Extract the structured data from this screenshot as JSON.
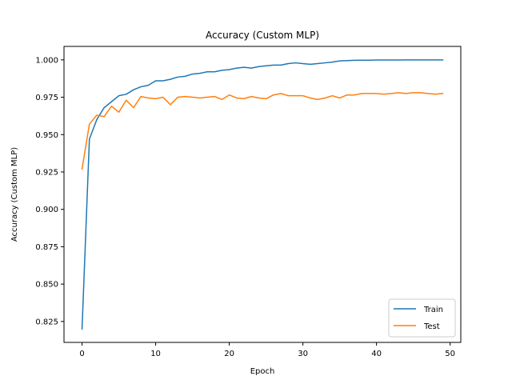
{
  "chart_data": {
    "type": "line",
    "title": "Accuracy (Custom MLP)",
    "xlabel": "Epoch",
    "ylabel": "Accuracy (Custom MLP)",
    "xlim": [
      -2.45,
      51.45
    ],
    "ylim": [
      0.811,
      1.009
    ],
    "xticks": [
      0,
      10,
      20,
      30,
      40,
      50
    ],
    "yticks": [
      0.825,
      0.85,
      0.875,
      0.9,
      0.925,
      0.95,
      0.975,
      1.0
    ],
    "ytick_labels": [
      "0.825",
      "0.850",
      "0.875",
      "0.900",
      "0.925",
      "0.950",
      "0.975",
      "1.000"
    ],
    "legend_position": "lower right",
    "grid": false,
    "series": [
      {
        "name": "Train",
        "color": "#1f77b4",
        "values": [
          0.82,
          0.947,
          0.96,
          0.968,
          0.972,
          0.976,
          0.977,
          0.98,
          0.982,
          0.983,
          0.986,
          0.986,
          0.987,
          0.9885,
          0.989,
          0.9905,
          0.991,
          0.992,
          0.992,
          0.993,
          0.9935,
          0.9945,
          0.995,
          0.9945,
          0.9955,
          0.996,
          0.9965,
          0.9965,
          0.9975,
          0.998,
          0.9975,
          0.997,
          0.9975,
          0.998,
          0.9985,
          0.9993,
          0.9995,
          0.9997,
          0.9998,
          0.9998,
          0.9999,
          0.9999,
          0.9999,
          0.9999,
          1.0,
          1.0,
          1.0,
          1.0,
          1.0,
          1.0
        ]
      },
      {
        "name": "Test",
        "color": "#ff7f0e",
        "values": [
          0.927,
          0.957,
          0.963,
          0.962,
          0.969,
          0.965,
          0.973,
          0.968,
          0.9755,
          0.9745,
          0.974,
          0.975,
          0.97,
          0.975,
          0.9755,
          0.975,
          0.9745,
          0.975,
          0.9755,
          0.9735,
          0.9765,
          0.9745,
          0.974,
          0.9755,
          0.9745,
          0.974,
          0.9765,
          0.9775,
          0.976,
          0.976,
          0.976,
          0.9745,
          0.9735,
          0.9745,
          0.976,
          0.9745,
          0.9765,
          0.9765,
          0.9775,
          0.9775,
          0.9775,
          0.977,
          0.9775,
          0.978,
          0.9775,
          0.978,
          0.978,
          0.9775,
          0.977,
          0.9775
        ]
      }
    ]
  }
}
